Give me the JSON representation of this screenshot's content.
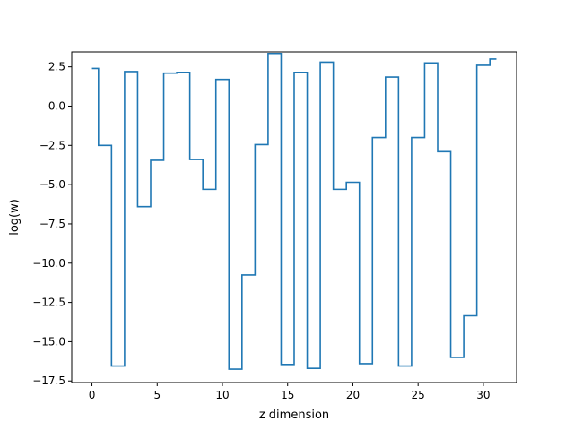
{
  "chart_data": {
    "type": "line",
    "drawstyle": "steps-mid",
    "xlabel": "z dimension",
    "ylabel": "log(w)",
    "xlim": [
      -1.55,
      32.55
    ],
    "ylim": [
      -17.6,
      3.45
    ],
    "xticks": [
      0,
      5,
      10,
      15,
      20,
      25,
      30
    ],
    "xtick_labels": [
      "0",
      "5",
      "10",
      "15",
      "20",
      "25",
      "30"
    ],
    "yticks": [
      2.5,
      0.0,
      -2.5,
      -5.0,
      -7.5,
      -10.0,
      -12.5,
      -15.0,
      -17.5
    ],
    "ytick_labels": [
      "2.5",
      "0.0",
      "−2.5",
      "−5.0",
      "−7.5",
      "−10.0",
      "−12.5",
      "−15.0",
      "−17.5"
    ],
    "grid": false,
    "series": [
      {
        "color": "#1f77b4",
        "x": [
          0,
          1,
          2,
          3,
          4,
          5,
          6,
          7,
          8,
          9,
          10,
          11,
          12,
          13,
          14,
          15,
          16,
          17,
          18,
          19,
          20,
          21,
          22,
          23,
          24,
          25,
          26,
          27,
          28,
          29,
          30,
          31
        ],
        "values": [
          2.4,
          -2.5,
          -16.55,
          2.2,
          -6.4,
          -3.45,
          2.1,
          2.15,
          -3.4,
          -5.3,
          1.7,
          -16.75,
          -10.75,
          -2.45,
          3.35,
          -16.45,
          2.15,
          -16.7,
          2.8,
          -5.3,
          -4.85,
          -16.4,
          -2.0,
          1.85,
          -16.55,
          -2.0,
          2.75,
          -2.9,
          -16.0,
          -13.35,
          2.6,
          3.0
        ]
      }
    ]
  }
}
